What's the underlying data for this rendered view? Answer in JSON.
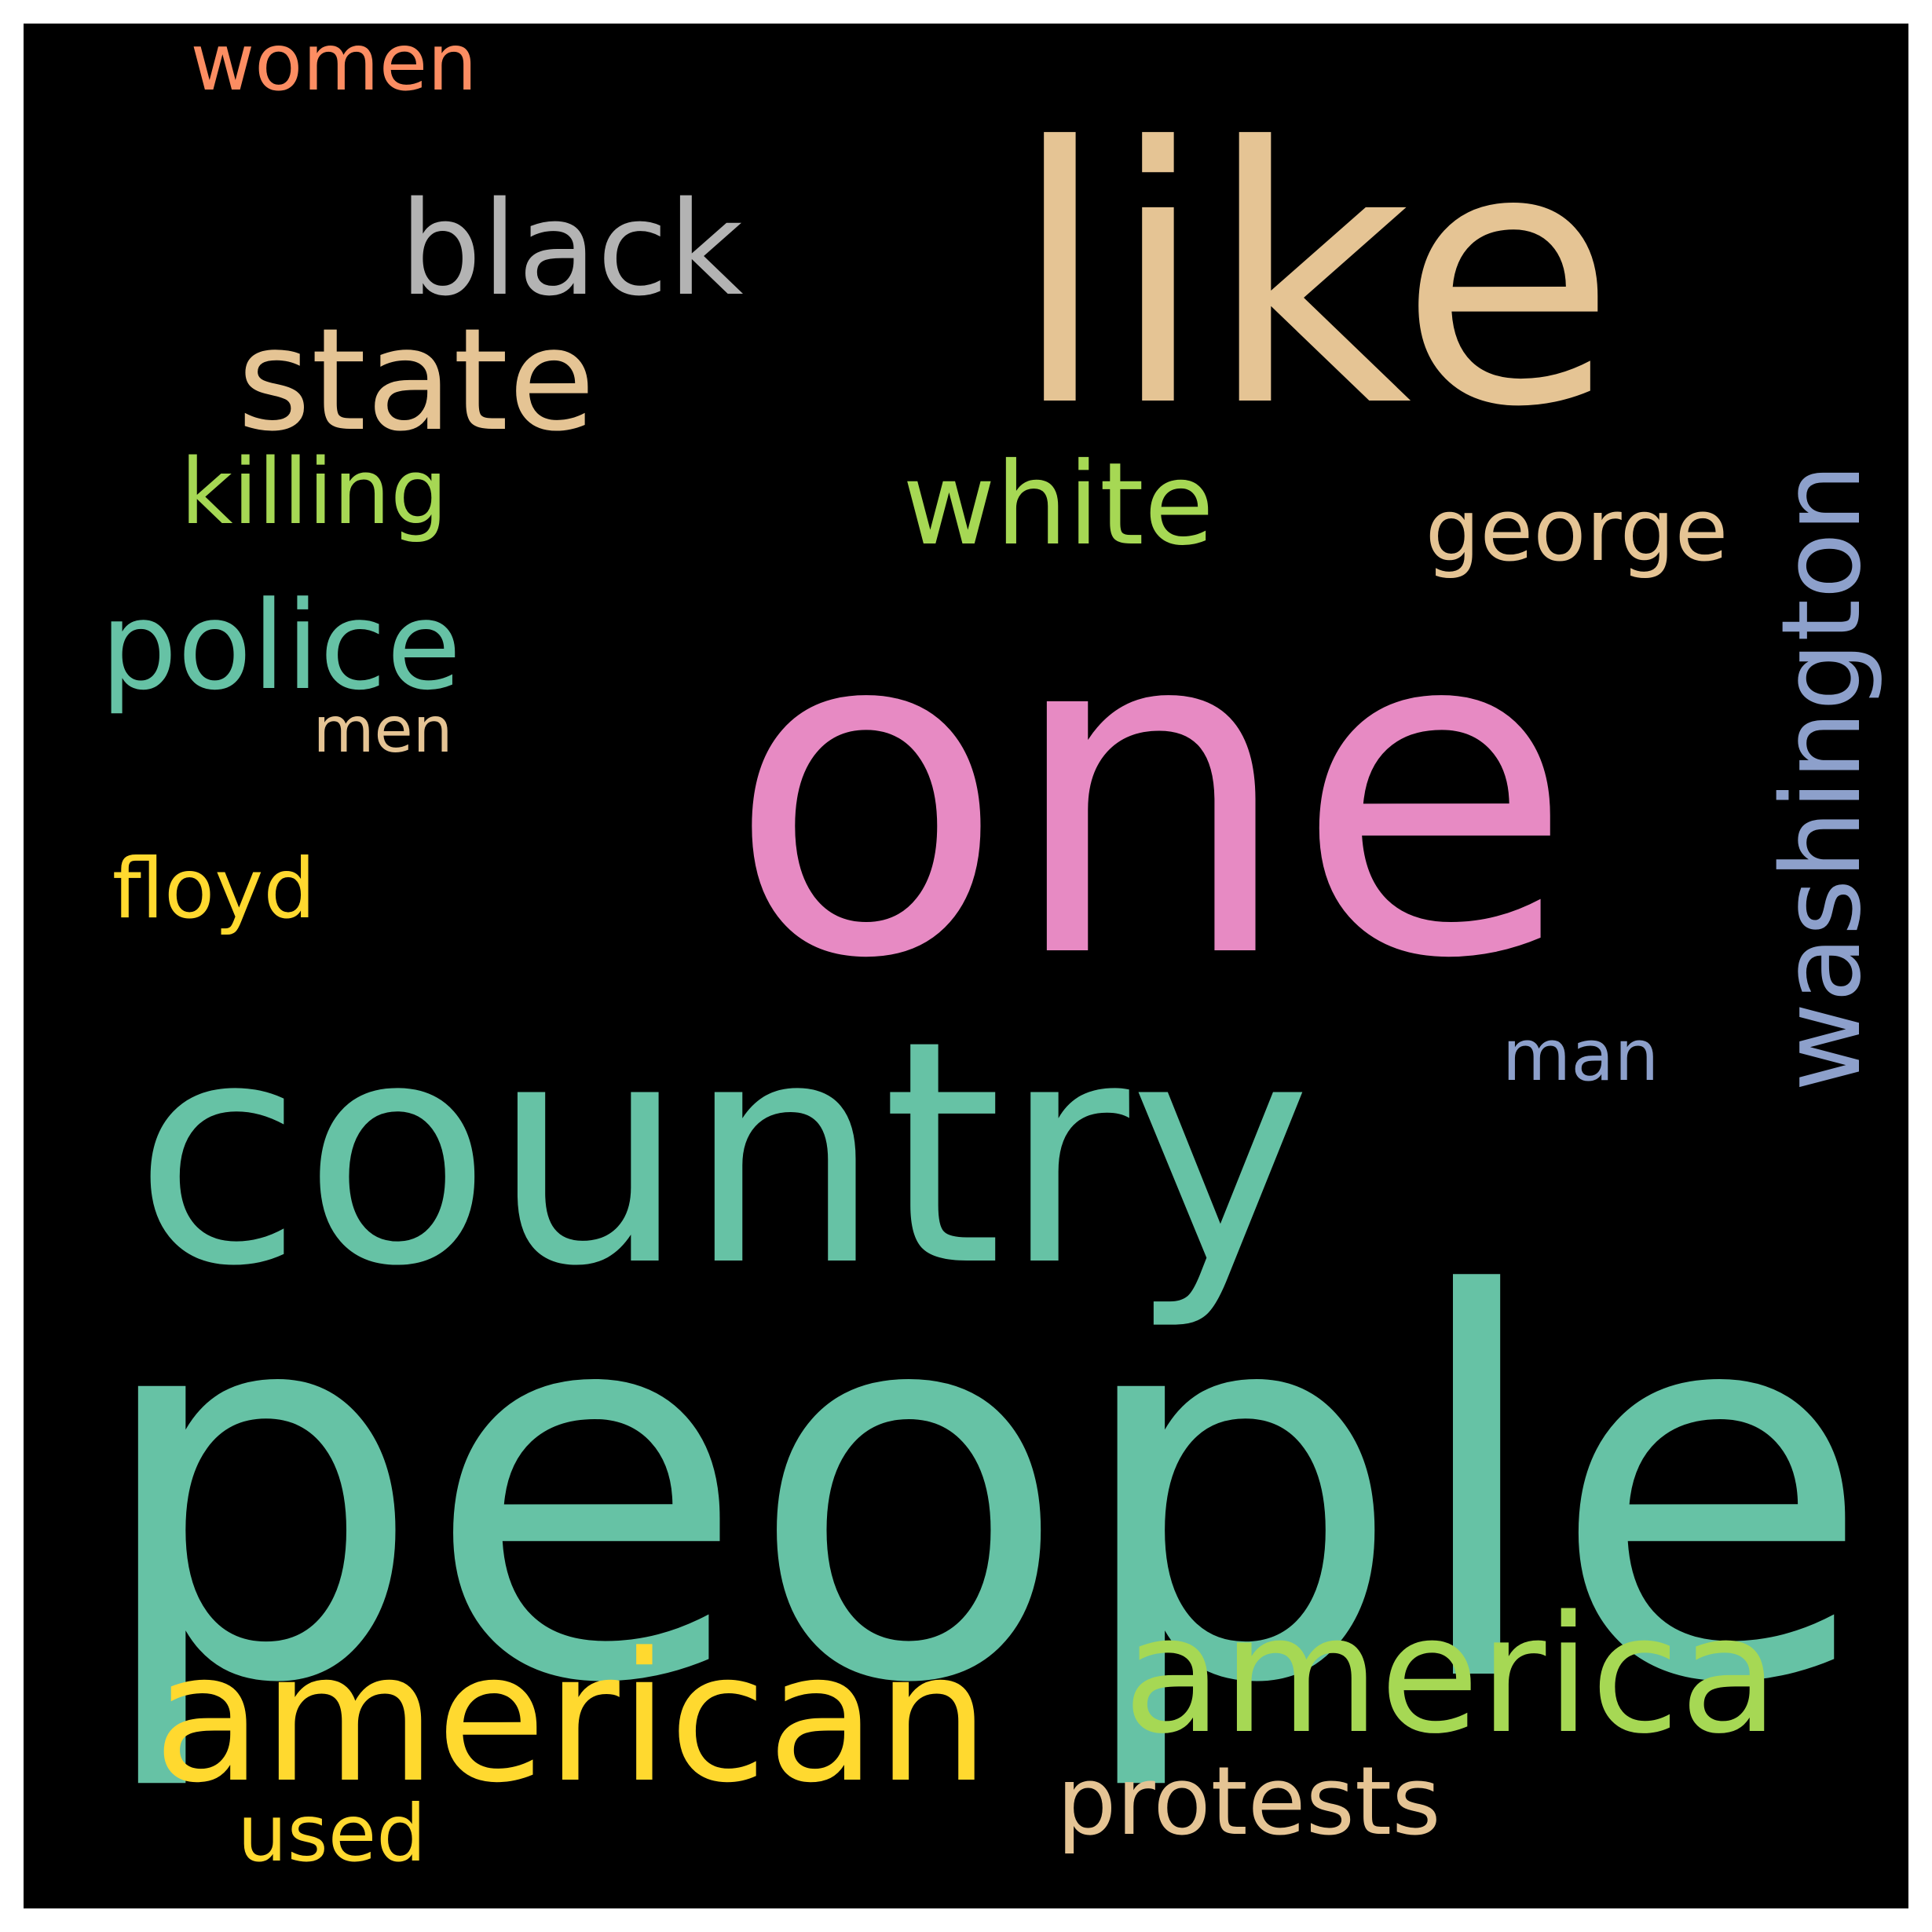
{
  "background": "#000000",
  "words": [
    {
      "id": "one",
      "text": "one",
      "color": "#e78ac3"
    },
    {
      "id": "people",
      "text": "people",
      "color": "#66c2a5"
    },
    {
      "id": "like",
      "text": "like",
      "color": "#e5c494"
    },
    {
      "id": "country",
      "text": "country",
      "color": "#66c2a5"
    },
    {
      "id": "american",
      "text": "american",
      "color": "#ffd92f"
    },
    {
      "id": "america",
      "text": "america",
      "color": "#a6d854"
    },
    {
      "id": "state",
      "text": "state",
      "color": "#e5c494"
    },
    {
      "id": "black",
      "text": "black",
      "color": "#b3b3b3"
    },
    {
      "id": "white",
      "text": "white",
      "color": "#a6d854"
    },
    {
      "id": "police",
      "text": "police",
      "color": "#66c2a5"
    },
    {
      "id": "washington",
      "text": "washington",
      "color": "#8da0cb"
    },
    {
      "id": "george",
      "text": "george",
      "color": "#e5c494"
    },
    {
      "id": "women",
      "text": "women",
      "color": "#fc8d62"
    },
    {
      "id": "killing",
      "text": "killing",
      "color": "#a6d854"
    },
    {
      "id": "men",
      "text": "men",
      "color": "#e5c494"
    },
    {
      "id": "floyd",
      "text": "floyd",
      "color": "#ffd92f"
    },
    {
      "id": "man",
      "text": "man",
      "color": "#8da0cb"
    },
    {
      "id": "protests",
      "text": "protests",
      "color": "#e5c494"
    },
    {
      "id": "used",
      "text": "used",
      "color": "#ffd92f"
    }
  ]
}
